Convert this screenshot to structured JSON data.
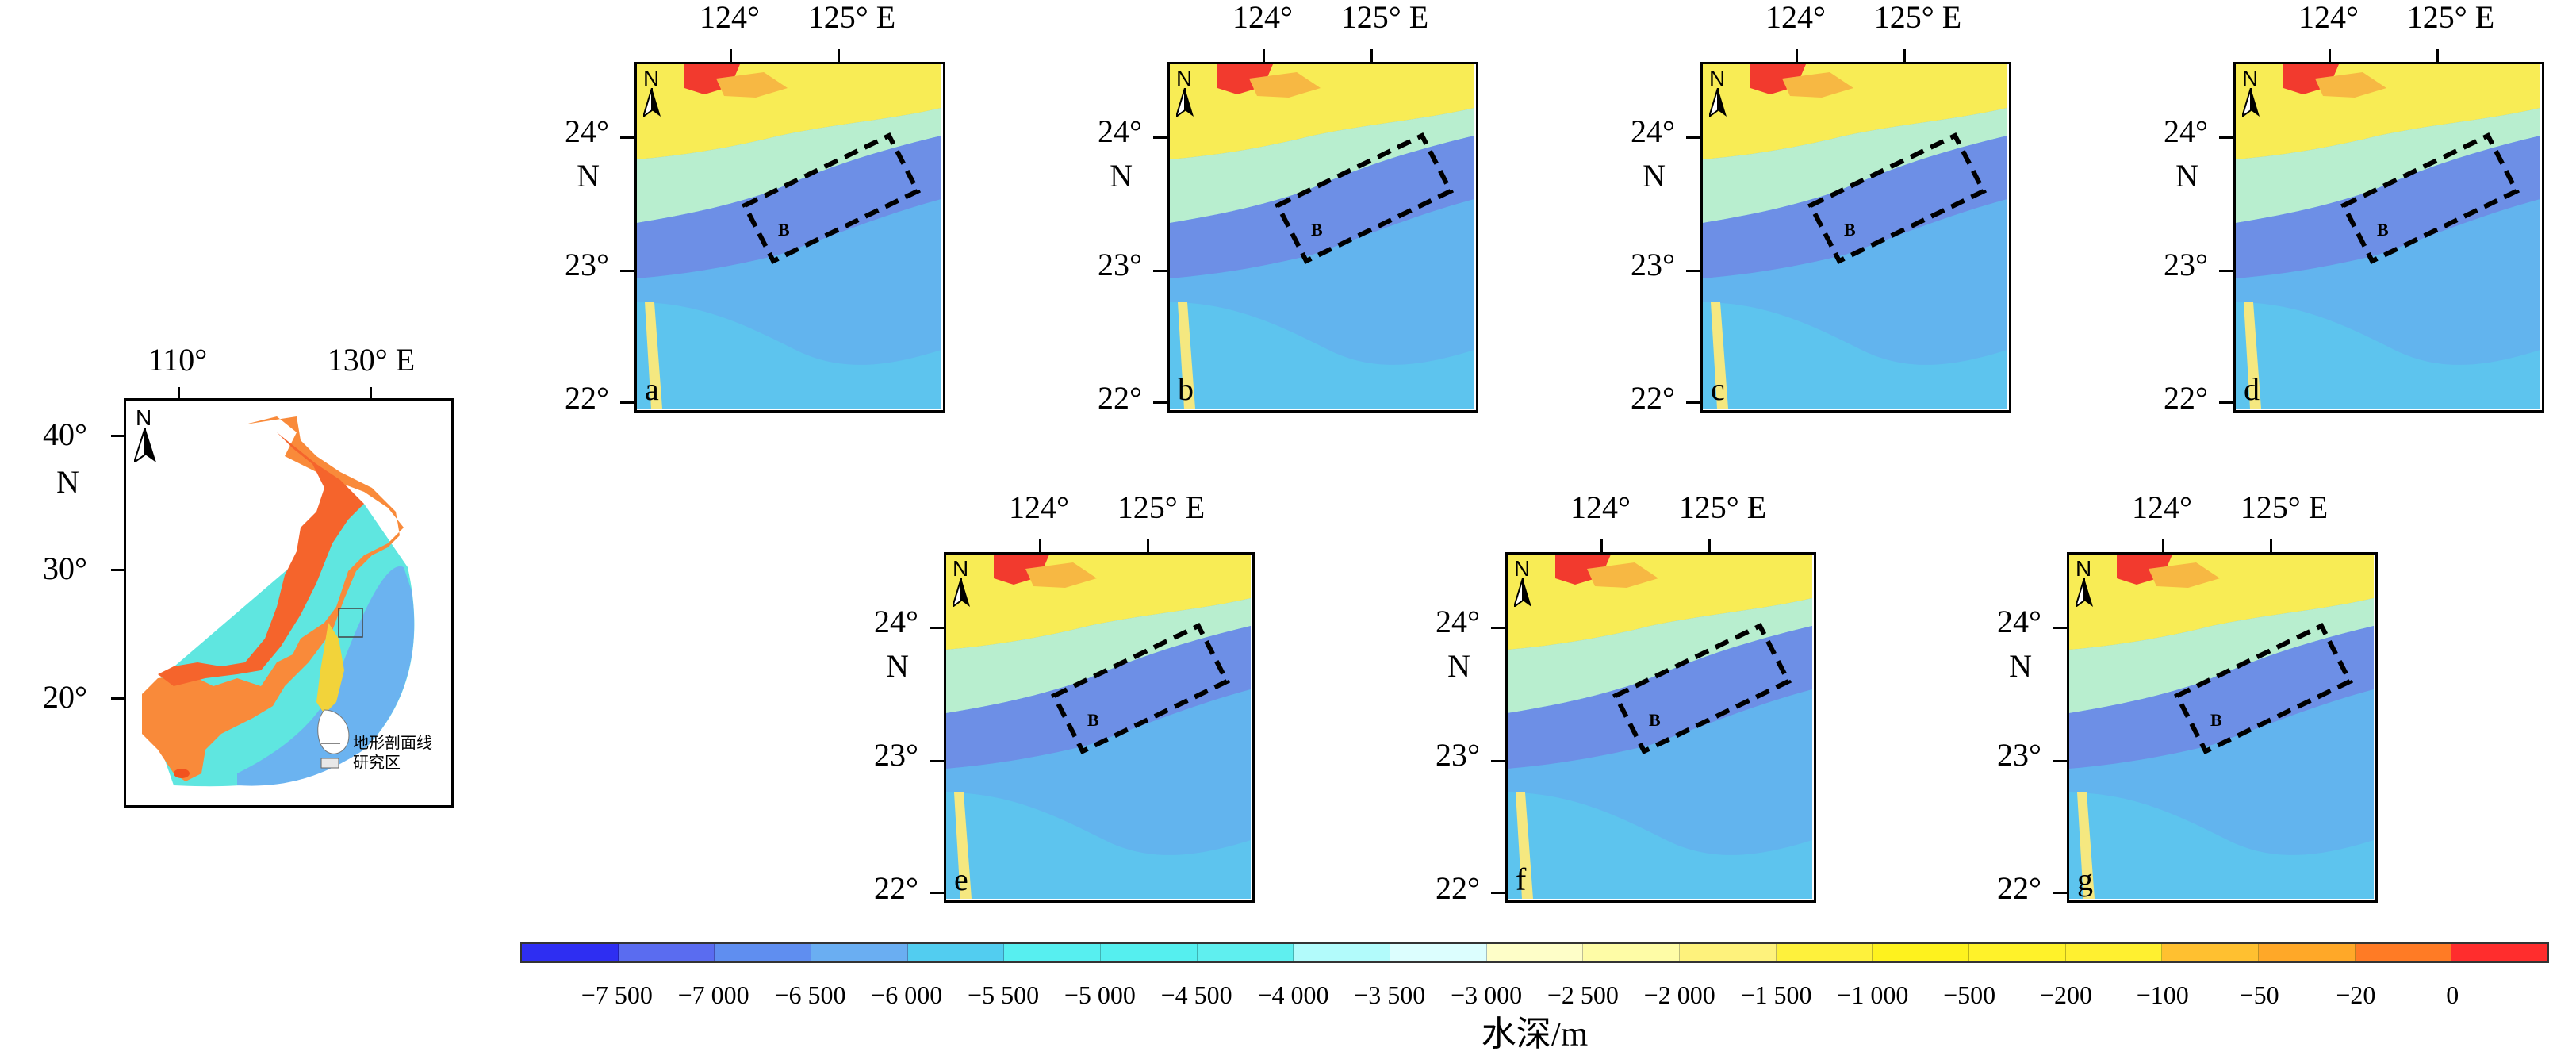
{
  "colors": {
    "ramp": [
      "#2e2ef2",
      "#5a6cf0",
      "#5f8ef0",
      "#6aaef2",
      "#52cdf0",
      "#57eff0",
      "#55efef",
      "#5fefef",
      "#b2fbfb",
      "#dcfefe",
      "#fefec8",
      "#fefca6",
      "#fef27c",
      "#fef13c",
      "#fef21e",
      "#fff22a",
      "#fff030",
      "#ffc030",
      "#ffa828",
      "#ff7b25",
      "#ff2d2d"
    ],
    "box": "#000000"
  },
  "overview": {
    "lon_ticks": [
      "110°",
      "130° E"
    ],
    "lat_ticks": [
      "40°",
      "30°",
      "20°"
    ],
    "lat_suffix": "N",
    "north_label": "N",
    "legend": [
      {
        "icon": "line",
        "label": "地形剖面线"
      },
      {
        "icon": "box",
        "label": "研究区"
      }
    ]
  },
  "panels": [
    {
      "letter": "a",
      "box_label": "B"
    },
    {
      "letter": "b",
      "box_label": "B"
    },
    {
      "letter": "c",
      "box_label": "B"
    },
    {
      "letter": "d",
      "box_label": "B"
    },
    {
      "letter": "e",
      "box_label": "B"
    },
    {
      "letter": "f",
      "box_label": "B"
    },
    {
      "letter": "g",
      "box_label": "B"
    }
  ],
  "panel_axes": {
    "lon_ticks": [
      "124°",
      "125° E"
    ],
    "lat_ticks": [
      "24°",
      "23°",
      "22°"
    ],
    "lat_suffix": "N",
    "north_label": "N"
  },
  "colorbar": {
    "labels": [
      "−7 500",
      "−7 000",
      "−6 500",
      "−6 000",
      "−5 500",
      "−5 000",
      "−4 500",
      "−4 000",
      "−3 500",
      "−3 000",
      "−2 500",
      "−2 000",
      "−1 500",
      "−1 000",
      "−500",
      "−200",
      "−100",
      "−50",
      "−20",
      "0"
    ],
    "title": "水深/m"
  }
}
